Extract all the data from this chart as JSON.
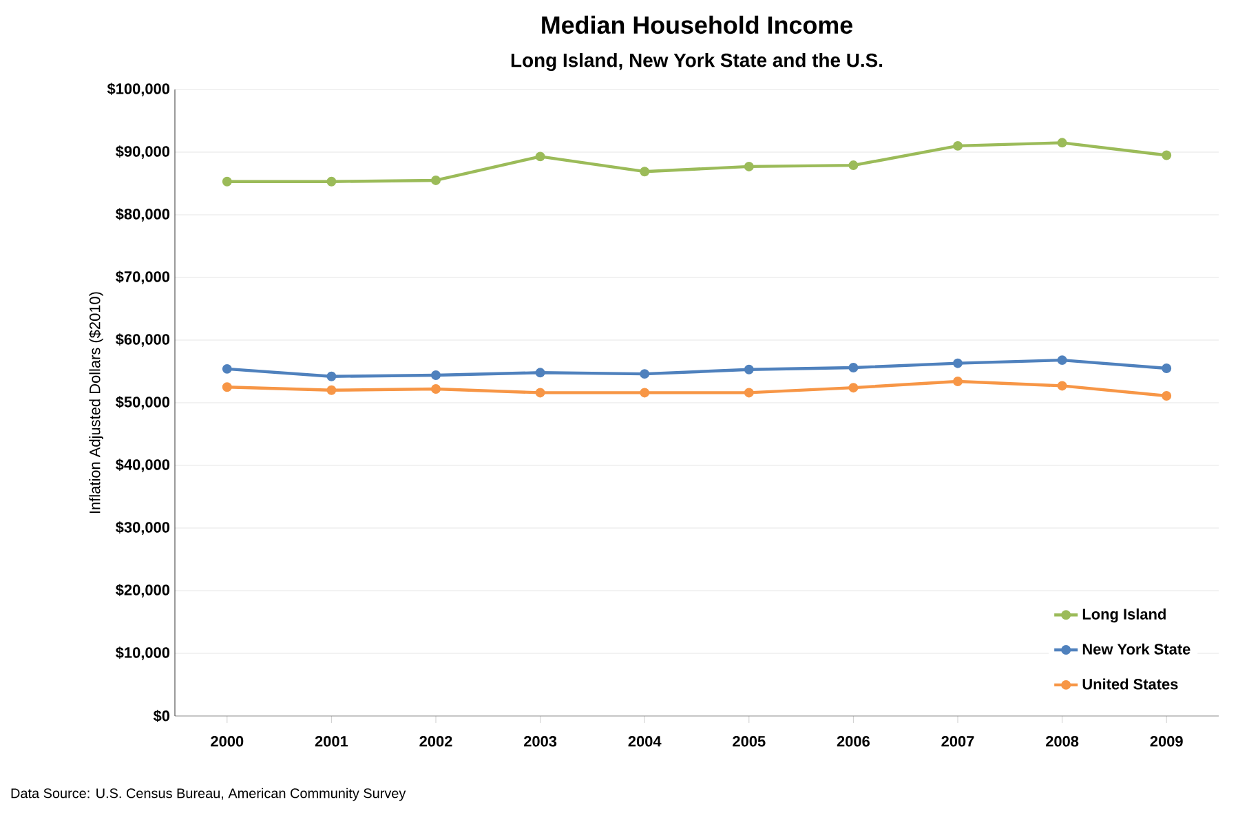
{
  "chart_data": {
    "type": "line",
    "title": "Median Household Income",
    "subtitle": "Long Island, New York State and the U.S.",
    "ylabel": "Inflation Adjusted Dollars ($2010)",
    "categories": [
      "2000",
      "2001",
      "2002",
      "2003",
      "2004",
      "2005",
      "2006",
      "2007",
      "2008",
      "2009"
    ],
    "series": [
      {
        "name": "Long Island",
        "color": "#9bbb59",
        "values": [
          85300,
          85300,
          85500,
          89300,
          86900,
          87700,
          87900,
          91000,
          91500,
          89500
        ]
      },
      {
        "name": "New York State",
        "color": "#4f81bd",
        "values": [
          55400,
          54200,
          54400,
          54800,
          54600,
          55300,
          55600,
          56300,
          56800,
          55500
        ]
      },
      {
        "name": "United States",
        "color": "#f79646",
        "values": [
          52500,
          52000,
          52200,
          51600,
          51600,
          51600,
          52400,
          53400,
          52700,
          51100
        ]
      }
    ],
    "ylim": [
      0,
      100000
    ],
    "yticks": [
      {
        "value": 0,
        "label": "$0"
      },
      {
        "value": 10000,
        "label": "$10,000"
      },
      {
        "value": 20000,
        "label": "$20,000"
      },
      {
        "value": 30000,
        "label": "$30,000"
      },
      {
        "value": 40000,
        "label": "$40,000"
      },
      {
        "value": 50000,
        "label": "$50,000"
      },
      {
        "value": 60000,
        "label": "$60,000"
      },
      {
        "value": 70000,
        "label": "$70,000"
      },
      {
        "value": 80000,
        "label": "$80,000"
      },
      {
        "value": 90000,
        "label": "$90,000"
      },
      {
        "value": 100000,
        "label": "$100,000"
      }
    ],
    "grid": "y",
    "legend": "bottom right",
    "marker": "circle",
    "line_style": "solid",
    "annotations": [
      "Data Source: U.S. Census Bureau, American Community Survey"
    ]
  }
}
